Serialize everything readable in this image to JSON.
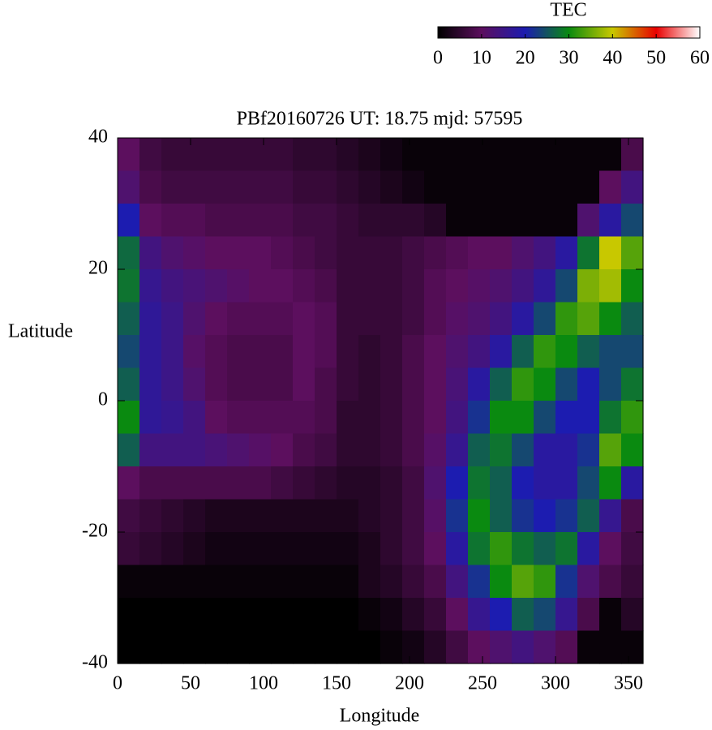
{
  "chart_data": {
    "type": "heatmap",
    "title": "PBf20160726  UT: 18.75  mjd: 57595",
    "xlabel": "Longitude",
    "ylabel": "Latitude",
    "colorbar_label": "TEC",
    "colormap": [
      "#000000",
      "#5c0f5e",
      "#1c1cb0",
      "#0a8a10",
      "#c8c800",
      "#e80000",
      "#ffffff"
    ],
    "clim": [
      0,
      60
    ],
    "cticks": [
      0,
      10,
      20,
      30,
      40,
      50,
      60
    ],
    "xlim": [
      0,
      360
    ],
    "xticks": [
      0,
      50,
      100,
      150,
      200,
      250,
      300,
      350
    ],
    "ylim": [
      -40,
      40
    ],
    "yticks": [
      -40,
      -20,
      0,
      20,
      40
    ],
    "x": [
      7.5,
      22.5,
      37.5,
      52.5,
      67.5,
      82.5,
      97.5,
      112.5,
      127.5,
      142.5,
      157.5,
      172.5,
      187.5,
      202.5,
      217.5,
      232.5,
      247.5,
      262.5,
      277.5,
      292.5,
      307.5,
      322.5,
      337.5,
      352.5
    ],
    "y": [
      37.5,
      32.5,
      27.5,
      22.5,
      17.5,
      12.5,
      7.5,
      2.5,
      -2.5,
      -7.5,
      -12.5,
      -17.5,
      -22.5,
      -27.5,
      -32.5,
      -37.5
    ],
    "z": [
      [
        10,
        7,
        6,
        6,
        6,
        6,
        6,
        6,
        5,
        5,
        4,
        3,
        2,
        1,
        1,
        1,
        1,
        1,
        1,
        1,
        1,
        1,
        1,
        8
      ],
      [
        12,
        8,
        7,
        7,
        7,
        7,
        7,
        7,
        6,
        6,
        5,
        4,
        3,
        2,
        1,
        1,
        1,
        1,
        1,
        1,
        1,
        1,
        10,
        14
      ],
      [
        20,
        10,
        9,
        9,
        8,
        8,
        8,
        8,
        7,
        7,
        6,
        5,
        5,
        5,
        4,
        1,
        1,
        1,
        1,
        1,
        1,
        12,
        18,
        24
      ],
      [
        27,
        14,
        12,
        11,
        10,
        10,
        10,
        9,
        8,
        7,
        6,
        6,
        6,
        7,
        8,
        9,
        10,
        10,
        12,
        14,
        18,
        28,
        40,
        34
      ],
      [
        28,
        16,
        14,
        13,
        12,
        11,
        10,
        10,
        9,
        8,
        6,
        6,
        6,
        7,
        9,
        10,
        11,
        12,
        14,
        17,
        24,
        36,
        38,
        30
      ],
      [
        26,
        17,
        15,
        12,
        10,
        9,
        9,
        9,
        10,
        9,
        6,
        6,
        6,
        7,
        9,
        11,
        12,
        14,
        18,
        24,
        32,
        34,
        30,
        26
      ],
      [
        24,
        17,
        15,
        11,
        9,
        8,
        8,
        8,
        10,
        9,
        6,
        5,
        6,
        8,
        10,
        12,
        14,
        18,
        26,
        32,
        30,
        26,
        24,
        24
      ],
      [
        26,
        17,
        15,
        12,
        9,
        8,
        8,
        8,
        10,
        8,
        6,
        5,
        6,
        8,
        10,
        13,
        18,
        26,
        32,
        30,
        24,
        20,
        24,
        28
      ],
      [
        30,
        17,
        16,
        14,
        10,
        9,
        9,
        9,
        9,
        8,
        5,
        5,
        6,
        8,
        10,
        14,
        22,
        30,
        30,
        24,
        20,
        20,
        28,
        32
      ],
      [
        26,
        14,
        14,
        14,
        13,
        12,
        11,
        10,
        8,
        7,
        5,
        5,
        6,
        8,
        11,
        16,
        26,
        28,
        24,
        18,
        18,
        22,
        34,
        30
      ],
      [
        10,
        8,
        8,
        8,
        8,
        8,
        8,
        7,
        6,
        5,
        4,
        4,
        5,
        7,
        12,
        20,
        28,
        26,
        20,
        18,
        18,
        24,
        30,
        18
      ],
      [
        7,
        6,
        5,
        4,
        3,
        3,
        3,
        3,
        3,
        3,
        3,
        4,
        5,
        7,
        11,
        22,
        30,
        26,
        22,
        20,
        22,
        26,
        16,
        8
      ],
      [
        6,
        5,
        4,
        3,
        2,
        2,
        2,
        2,
        2,
        2,
        2,
        3,
        5,
        7,
        10,
        18,
        28,
        32,
        28,
        26,
        28,
        18,
        10,
        7
      ],
      [
        1,
        1,
        1,
        1,
        1,
        1,
        1,
        1,
        1,
        1,
        1,
        3,
        4,
        6,
        8,
        14,
        22,
        30,
        34,
        32,
        22,
        12,
        8,
        6
      ],
      [
        0,
        0,
        0,
        0,
        0,
        0,
        0,
        0,
        0,
        0,
        0,
        1,
        2,
        4,
        6,
        10,
        16,
        20,
        26,
        24,
        16,
        8,
        1,
        4
      ],
      [
        0,
        0,
        0,
        0,
        0,
        0,
        0,
        0,
        0,
        0,
        0,
        0,
        1,
        2,
        4,
        7,
        10,
        12,
        14,
        12,
        9,
        1,
        1,
        1
      ]
    ]
  }
}
